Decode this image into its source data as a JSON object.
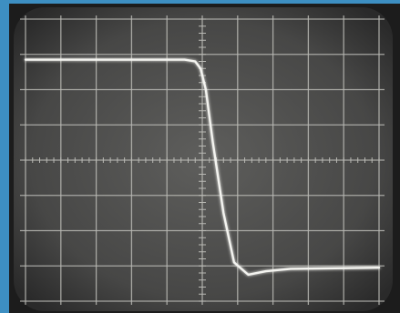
{
  "chart_data": {
    "type": "line",
    "x": [
      0,
      4.5,
      4.8,
      4.95,
      5.1,
      5.3,
      5.6,
      5.9,
      6.3,
      6.8,
      7.5,
      10
    ],
    "values": [
      2.85,
      2.85,
      2.8,
      2.6,
      2.0,
      0.5,
      -1.5,
      -2.9,
      -3.25,
      -3.15,
      -3.08,
      -3.05
    ],
    "color": "#f4f4f0",
    "xlim": [
      0,
      10
    ],
    "xticks": [
      0,
      1,
      2,
      3,
      4,
      5,
      6,
      7,
      8,
      9,
      10
    ],
    "ylim": [
      -4,
      4
    ],
    "yticks": [
      -4,
      -3,
      -2,
      -1,
      0,
      1,
      2,
      3,
      4
    ],
    "grid": true
  }
}
